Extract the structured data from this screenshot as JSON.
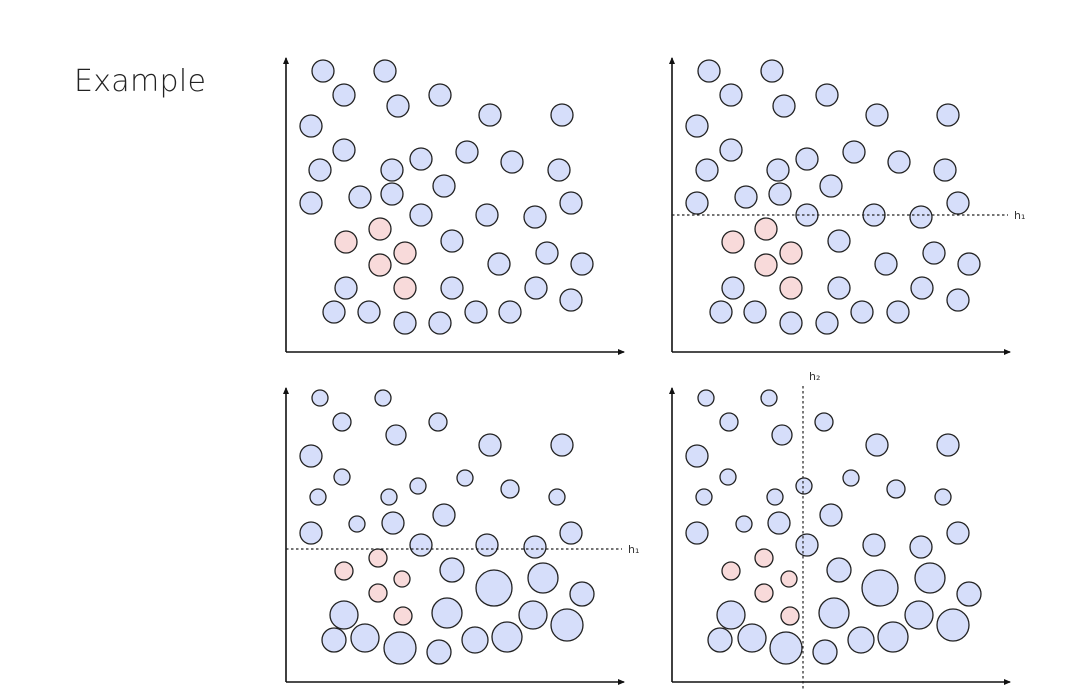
{
  "title": "Example",
  "colors": {
    "blue_point": "#d6defa",
    "pink_point": "#f8dada",
    "outline": "#222222",
    "axis": "#111111"
  },
  "panels": [
    {
      "name": "panel-original",
      "split_h": null,
      "split_v": null,
      "blue": [
        [
          323,
          71,
          11
        ],
        [
          385,
          71,
          11
        ],
        [
          344,
          95,
          11
        ],
        [
          398,
          106,
          11
        ],
        [
          440,
          95,
          11
        ],
        [
          311,
          126,
          11
        ],
        [
          490,
          115,
          11
        ],
        [
          562,
          115,
          11
        ],
        [
          344,
          150,
          11
        ],
        [
          421,
          159,
          11
        ],
        [
          467,
          152,
          11
        ],
        [
          320,
          170,
          11
        ],
        [
          392,
          170,
          11
        ],
        [
          512,
          162,
          11
        ],
        [
          559,
          170,
          11
        ],
        [
          444,
          186,
          11
        ],
        [
          360,
          197,
          11
        ],
        [
          392,
          194,
          11
        ],
        [
          311,
          203,
          11
        ],
        [
          571,
          203,
          11
        ],
        [
          421,
          215,
          11
        ],
        [
          487,
          215,
          11
        ],
        [
          535,
          217,
          11
        ],
        [
          452,
          241,
          11
        ],
        [
          547,
          253,
          11
        ],
        [
          499,
          264,
          11
        ],
        [
          582,
          264,
          11
        ],
        [
          346,
          288,
          11
        ],
        [
          452,
          288,
          11
        ],
        [
          536,
          288,
          11
        ],
        [
          571,
          300,
          11
        ],
        [
          334,
          312,
          11
        ],
        [
          369,
          312,
          11
        ],
        [
          476,
          312,
          11
        ],
        [
          510,
          312,
          11
        ],
        [
          405,
          323,
          11
        ],
        [
          440,
          323,
          11
        ]
      ],
      "pink": [
        [
          380,
          229,
          11
        ],
        [
          346,
          242,
          11
        ],
        [
          405,
          253,
          11
        ],
        [
          380,
          265,
          11
        ],
        [
          405,
          288,
          11
        ]
      ]
    },
    {
      "name": "panel-split-h1",
      "split_h": {
        "label": "h₁"
      },
      "split_v": null,
      "blue": [
        [
          709,
          71,
          11
        ],
        [
          772,
          71,
          11
        ],
        [
          731,
          95,
          11
        ],
        [
          784,
          106,
          11
        ],
        [
          827,
          95,
          11
        ],
        [
          697,
          126,
          11
        ],
        [
          877,
          115,
          11
        ],
        [
          948,
          115,
          11
        ],
        [
          731,
          150,
          11
        ],
        [
          807,
          159,
          11
        ],
        [
          854,
          152,
          11
        ],
        [
          707,
          170,
          11
        ],
        [
          778,
          170,
          11
        ],
        [
          899,
          162,
          11
        ],
        [
          945,
          170,
          11
        ],
        [
          831,
          186,
          11
        ],
        [
          746,
          197,
          11
        ],
        [
          780,
          194,
          11
        ],
        [
          697,
          203,
          11
        ],
        [
          958,
          203,
          11
        ],
        [
          807,
          215,
          11
        ],
        [
          874,
          215,
          11
        ],
        [
          921,
          217,
          11
        ],
        [
          839,
          241,
          11
        ],
        [
          934,
          253,
          11
        ],
        [
          886,
          264,
          11
        ],
        [
          969,
          264,
          11
        ],
        [
          733,
          288,
          11
        ],
        [
          839,
          288,
          11
        ],
        [
          922,
          288,
          11
        ],
        [
          958,
          300,
          11
        ],
        [
          721,
          312,
          11
        ],
        [
          755,
          312,
          11
        ],
        [
          862,
          312,
          11
        ],
        [
          898,
          312,
          11
        ],
        [
          791,
          323,
          11
        ],
        [
          827,
          323,
          11
        ]
      ],
      "pink": [
        [
          766,
          229,
          11
        ],
        [
          733,
          242,
          11
        ],
        [
          791,
          253,
          11
        ],
        [
          766,
          265,
          11
        ],
        [
          791,
          288,
          11
        ]
      ]
    },
    {
      "name": "panel-weighted",
      "split_h": {
        "label": "h₁"
      },
      "split_v": null,
      "blue": [
        [
          320,
          398,
          8
        ],
        [
          383,
          398,
          8
        ],
        [
          342,
          422,
          9
        ],
        [
          396,
          435,
          10
        ],
        [
          438,
          422,
          9
        ],
        [
          311,
          456,
          11
        ],
        [
          490,
          445,
          11
        ],
        [
          562,
          445,
          11
        ],
        [
          342,
          477,
          8
        ],
        [
          418,
          486,
          8
        ],
        [
          465,
          478,
          8
        ],
        [
          318,
          497,
          8
        ],
        [
          389,
          497,
          8
        ],
        [
          510,
          489,
          9
        ],
        [
          557,
          497,
          8
        ],
        [
          444,
          515,
          11
        ],
        [
          357,
          524,
          8
        ],
        [
          393,
          523,
          11
        ],
        [
          311,
          533,
          11
        ],
        [
          571,
          533,
          11
        ],
        [
          421,
          545,
          11
        ],
        [
          487,
          545,
          11
        ],
        [
          535,
          547,
          11
        ],
        [
          452,
          570,
          12
        ],
        [
          543,
          578,
          15
        ],
        [
          494,
          588,
          18
        ],
        [
          582,
          594,
          12
        ],
        [
          344,
          615,
          14
        ],
        [
          447,
          613,
          15
        ],
        [
          533,
          615,
          14
        ],
        [
          567,
          625,
          16
        ],
        [
          334,
          640,
          12
        ],
        [
          365,
          638,
          14
        ],
        [
          475,
          640,
          13
        ],
        [
          507,
          637,
          15
        ],
        [
          400,
          648,
          16
        ],
        [
          439,
          652,
          12
        ]
      ],
      "pink": [
        [
          378,
          558,
          9
        ],
        [
          344,
          571,
          9
        ],
        [
          402,
          579,
          8
        ],
        [
          378,
          593,
          9
        ],
        [
          403,
          616,
          9
        ]
      ]
    },
    {
      "name": "panel-split-h2",
      "split_h": null,
      "split_v": {
        "label": "h₂"
      },
      "blue": [
        [
          706,
          398,
          8
        ],
        [
          769,
          398,
          8
        ],
        [
          729,
          422,
          9
        ],
        [
          782,
          435,
          10
        ],
        [
          824,
          422,
          9
        ],
        [
          697,
          456,
          11
        ],
        [
          877,
          445,
          11
        ],
        [
          948,
          445,
          11
        ],
        [
          728,
          477,
          8
        ],
        [
          804,
          486,
          8
        ],
        [
          851,
          478,
          8
        ],
        [
          704,
          497,
          8
        ],
        [
          775,
          497,
          8
        ],
        [
          896,
          489,
          9
        ],
        [
          943,
          497,
          8
        ],
        [
          831,
          515,
          11
        ],
        [
          744,
          524,
          8
        ],
        [
          779,
          523,
          11
        ],
        [
          697,
          533,
          11
        ],
        [
          958,
          533,
          11
        ],
        [
          807,
          545,
          11
        ],
        [
          874,
          545,
          11
        ],
        [
          921,
          547,
          11
        ],
        [
          839,
          570,
          12
        ],
        [
          930,
          578,
          15
        ],
        [
          880,
          588,
          18
        ],
        [
          969,
          594,
          12
        ],
        [
          731,
          615,
          14
        ],
        [
          834,
          613,
          15
        ],
        [
          919,
          615,
          14
        ],
        [
          953,
          625,
          16
        ],
        [
          720,
          640,
          12
        ],
        [
          752,
          638,
          14
        ],
        [
          861,
          640,
          13
        ],
        [
          893,
          637,
          15
        ],
        [
          786,
          648,
          16
        ],
        [
          825,
          652,
          12
        ]
      ],
      "pink": [
        [
          764,
          558,
          9
        ],
        [
          731,
          571,
          9
        ],
        [
          789,
          579,
          8
        ],
        [
          764,
          593,
          9
        ],
        [
          790,
          616,
          9
        ]
      ]
    }
  ]
}
